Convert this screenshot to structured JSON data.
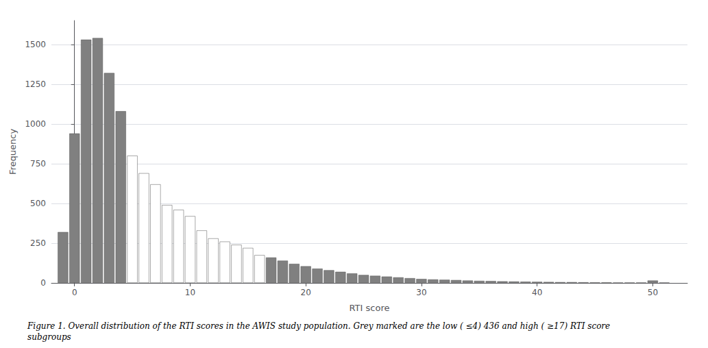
{
  "chart_data": {
    "type": "bar",
    "x": [
      -1,
      0,
      1,
      2,
      3,
      4,
      5,
      6,
      7,
      8,
      9,
      10,
      11,
      12,
      13,
      14,
      15,
      16,
      17,
      18,
      19,
      20,
      21,
      22,
      23,
      24,
      25,
      26,
      27,
      28,
      29,
      30,
      31,
      32,
      33,
      34,
      35,
      36,
      37,
      38,
      39,
      40,
      41,
      42,
      43,
      44,
      45,
      46,
      47,
      48,
      49,
      50,
      51
    ],
    "values": [
      320,
      940,
      1530,
      1540,
      1320,
      1080,
      800,
      690,
      620,
      490,
      460,
      420,
      330,
      280,
      260,
      240,
      220,
      175,
      160,
      140,
      120,
      105,
      90,
      80,
      70,
      60,
      50,
      45,
      40,
      35,
      30,
      25,
      22,
      20,
      18,
      15,
      13,
      12,
      10,
      9,
      8,
      7,
      6,
      5,
      5,
      4,
      3,
      3,
      2,
      2,
      2,
      15,
      2
    ],
    "colors": [
      "#808080",
      "#808080",
      "#808080",
      "#808080",
      "#808080",
      "#808080",
      "#ffffff",
      "#ffffff",
      "#ffffff",
      "#ffffff",
      "#ffffff",
      "#ffffff",
      "#ffffff",
      "#ffffff",
      "#ffffff",
      "#ffffff",
      "#ffffff",
      "#ffffff",
      "#808080",
      "#808080",
      "#808080",
      "#808080",
      "#808080",
      "#808080",
      "#808080",
      "#808080",
      "#808080",
      "#808080",
      "#808080",
      "#808080",
      "#808080",
      "#808080",
      "#808080",
      "#808080",
      "#808080",
      "#808080",
      "#808080",
      "#808080",
      "#808080",
      "#808080",
      "#808080",
      "#808080",
      "#808080",
      "#808080",
      "#808080",
      "#808080",
      "#808080",
      "#808080",
      "#808080",
      "#808080",
      "#808080",
      "#808080",
      "#808080"
    ],
    "xlabel": "RTI score",
    "ylabel": "Frequency",
    "xlim": [
      -2.0,
      53.0
    ],
    "ylim": [
      0,
      1650
    ],
    "xticks": [
      0,
      10,
      20,
      30,
      40,
      50
    ],
    "yticks": [
      0,
      250,
      500,
      750,
      1000,
      1250,
      1500
    ],
    "grid": true,
    "caption": "Figure 1. Overall distribution of the RTI scores in the AWIS study population. Grey marked are the low ( ≤4) 436 and high ( ≥17) RTI score\nsubgroups"
  }
}
